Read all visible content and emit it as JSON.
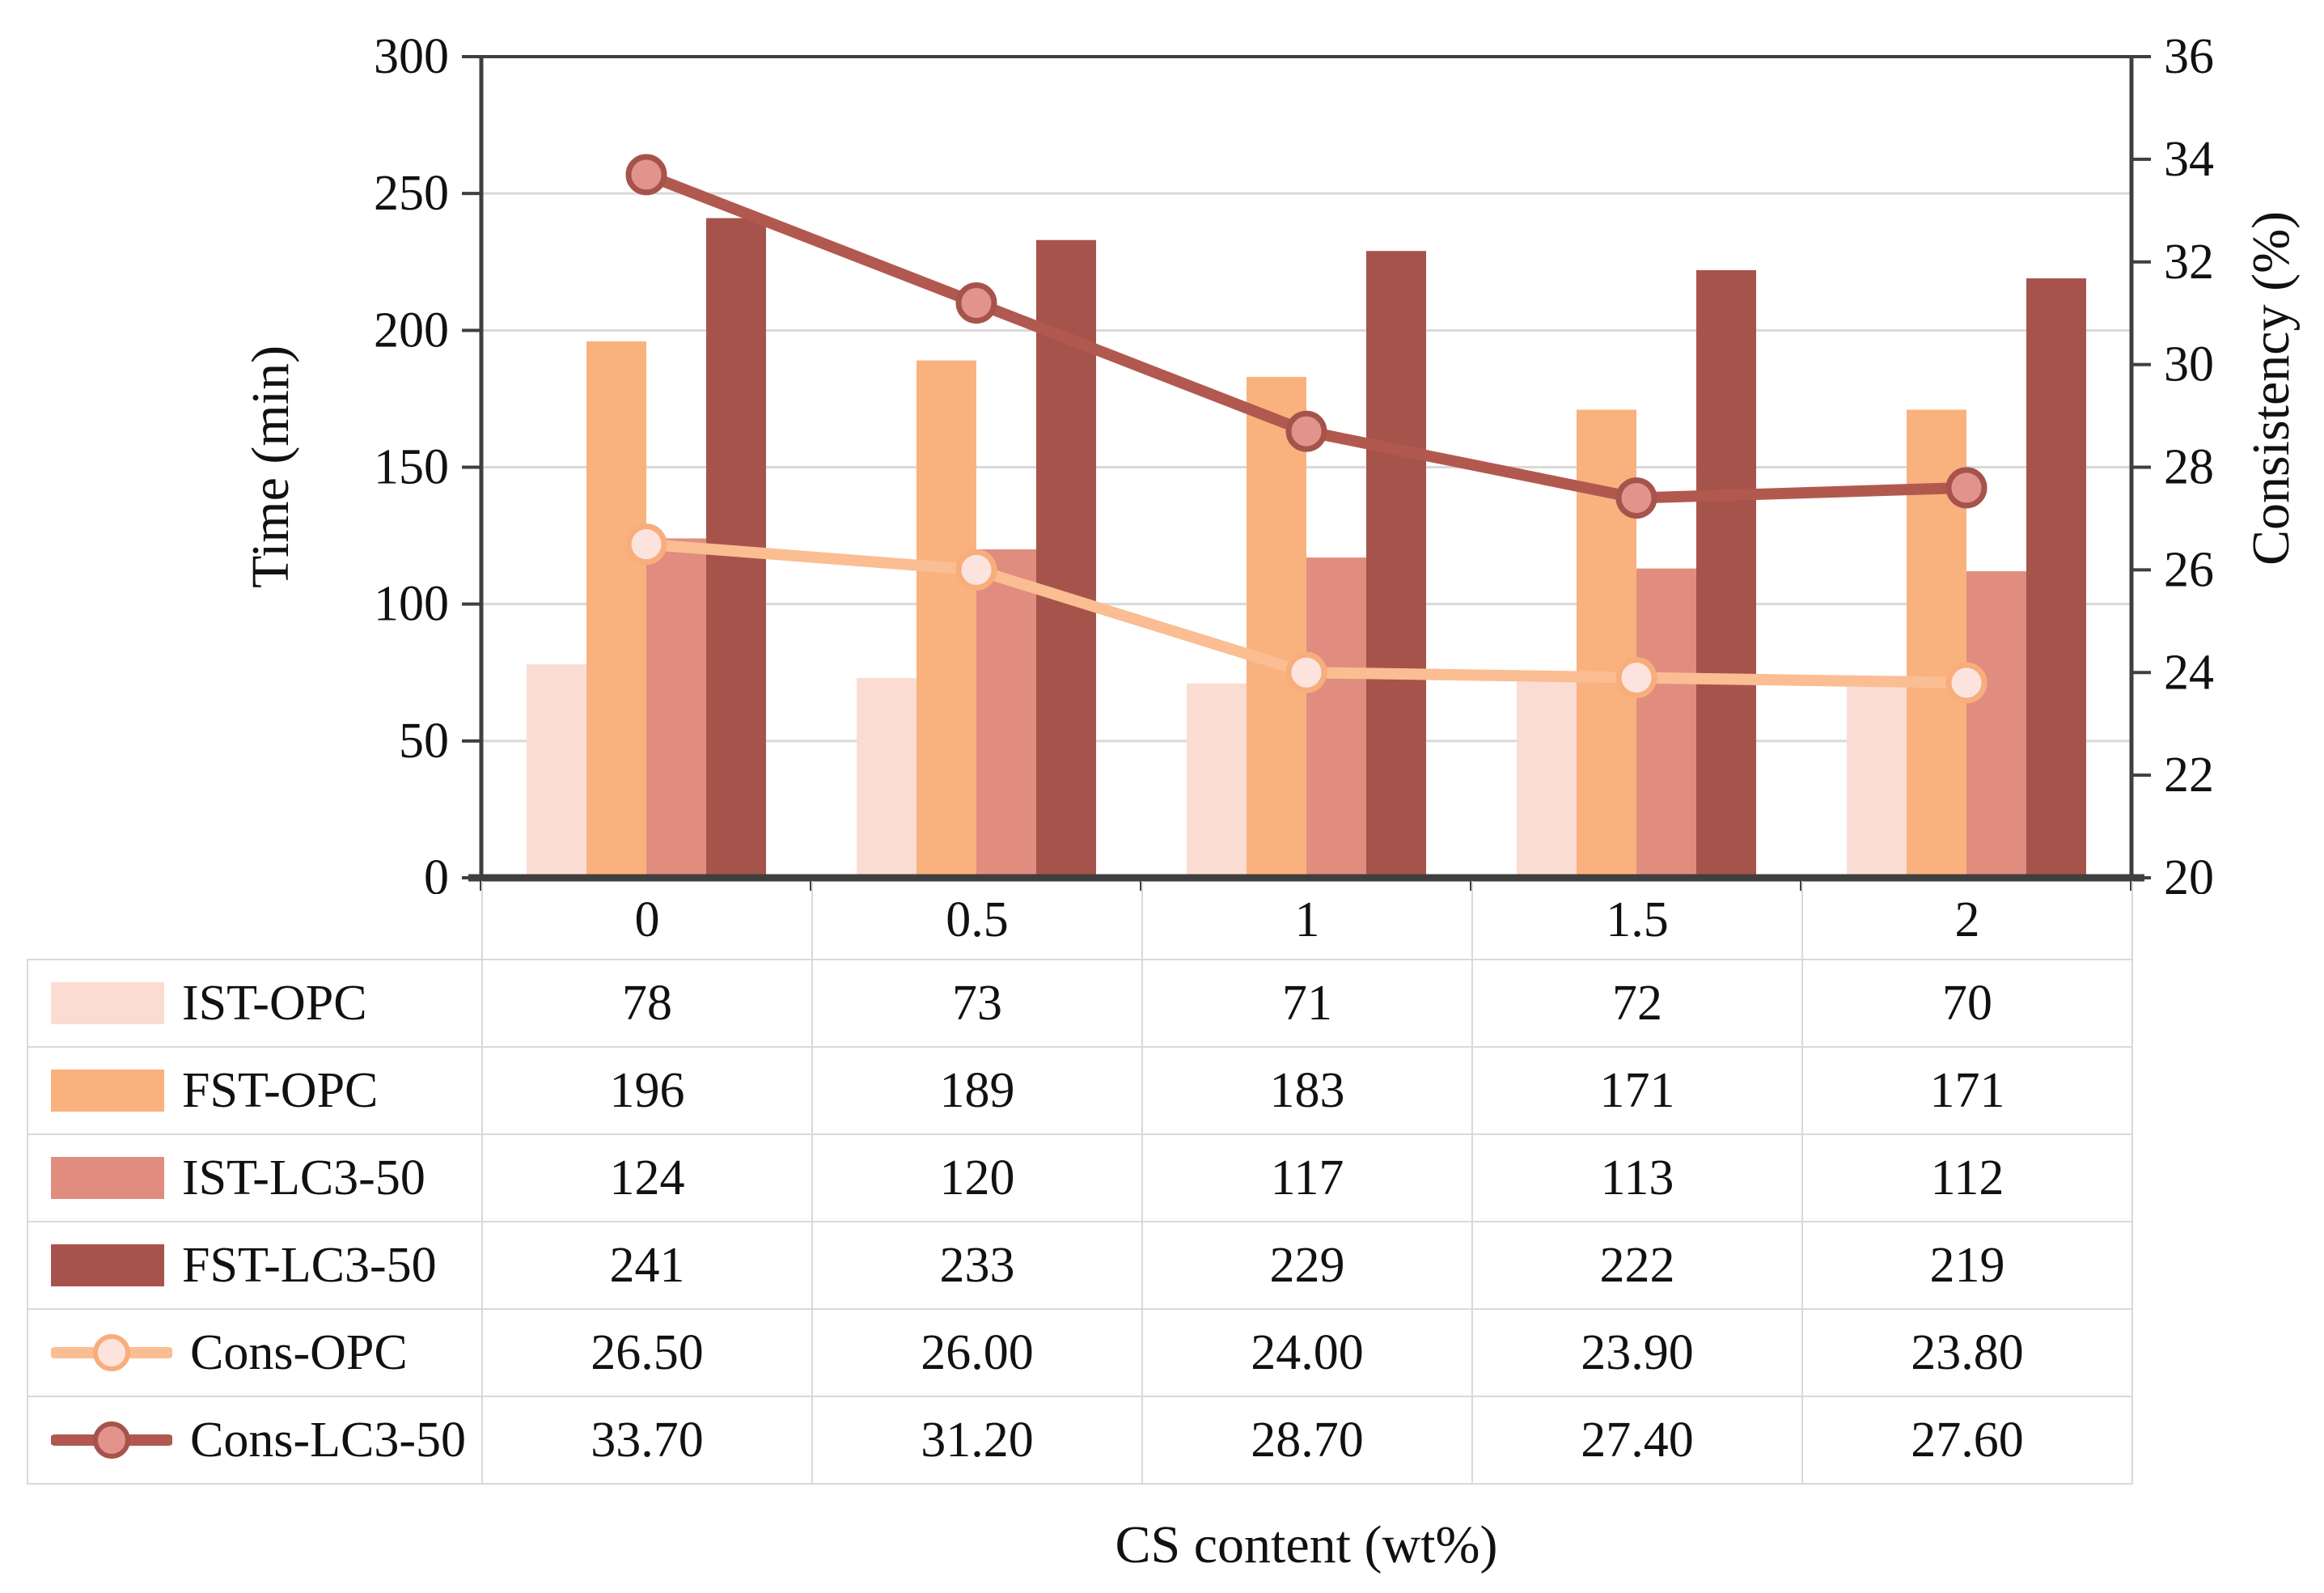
{
  "chart_data": {
    "type": "combo-bar-line",
    "categories": [
      "0",
      "0.5",
      "1",
      "1.5",
      "2"
    ],
    "bar_series": [
      {
        "name": "IST-OPC",
        "color": "#fbdcd3",
        "values": [
          78,
          73,
          71,
          72,
          70
        ],
        "display": [
          "78",
          "73",
          "71",
          "72",
          "70"
        ]
      },
      {
        "name": "FST-OPC",
        "color": "#f9b27d",
        "values": [
          196,
          189,
          183,
          171,
          171
        ],
        "display": [
          "196",
          "189",
          "183",
          "171",
          "171"
        ]
      },
      {
        "name": "IST-LC3-50",
        "color": "#e08d80",
        "values": [
          124,
          120,
          117,
          113,
          112
        ],
        "display": [
          "124",
          "120",
          "117",
          "113",
          "112"
        ]
      },
      {
        "name": "FST-LC3-50",
        "color": "#a6544b",
        "values": [
          241,
          233,
          229,
          222,
          219
        ],
        "display": [
          "241",
          "233",
          "229",
          "222",
          "219"
        ]
      }
    ],
    "line_series": [
      {
        "name": "Cons-OPC",
        "color": "#fbbd92",
        "marker_fill": "#fde3de",
        "marker_stroke": "#f8ad7d",
        "values": [
          26.5,
          26.0,
          24.0,
          23.9,
          23.8
        ],
        "display": [
          "26.50",
          "26.00",
          "24.00",
          "23.90",
          "23.80"
        ]
      },
      {
        "name": "Cons-LC3-50",
        "color": "#b2594f",
        "marker_fill": "#e2938c",
        "marker_stroke": "#a6544b",
        "values": [
          33.7,
          31.2,
          28.7,
          27.4,
          27.6
        ],
        "display": [
          "33.70",
          "31.20",
          "28.70",
          "27.40",
          "27.60"
        ]
      }
    ],
    "left_axis": {
      "label": "Time (min)",
      "min": 0,
      "max": 300,
      "step": 50
    },
    "right_axis": {
      "label": "Consistency (%)",
      "min": 20,
      "max": 36,
      "step": 2
    },
    "xlabel": "CS content (wt%)",
    "grid": true,
    "legend_position": "table-left",
    "colors": {
      "grid": "#d9d9d9",
      "axis": "#3f3f3f",
      "text": "#111111",
      "table_border": "#d9d9d9"
    }
  }
}
